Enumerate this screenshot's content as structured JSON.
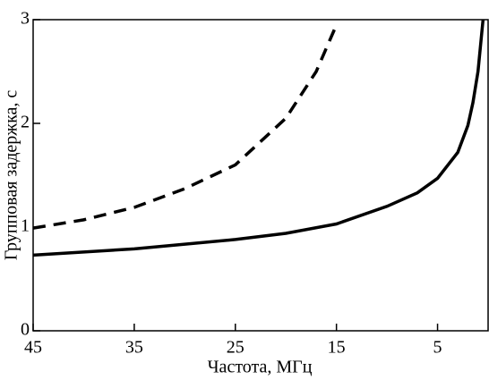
{
  "chart_data": {
    "type": "line",
    "xlabel": "Частота, МГц",
    "ylabel": "Групповая задержка, с",
    "xlim": [
      45,
      0
    ],
    "xticks": [
      45,
      35,
      25,
      15,
      5
    ],
    "ylim": [
      0,
      3
    ],
    "yticks": [
      0,
      1,
      2,
      3
    ],
    "series": [
      {
        "style": "solid",
        "color": "#000000",
        "x": [
          45,
          35,
          25,
          20,
          15,
          10,
          7,
          5,
          3,
          2,
          1.5,
          1,
          0.5
        ],
        "values": [
          0.73,
          0.79,
          0.88,
          0.94,
          1.03,
          1.2,
          1.33,
          1.47,
          1.72,
          1.98,
          2.2,
          2.5,
          3.0
        ]
      },
      {
        "style": "dashed",
        "color": "#000000",
        "x": [
          45,
          40,
          35,
          30,
          25,
          20,
          17,
          15
        ],
        "values": [
          0.99,
          1.07,
          1.19,
          1.37,
          1.6,
          2.05,
          2.5,
          2.95
        ]
      }
    ]
  }
}
